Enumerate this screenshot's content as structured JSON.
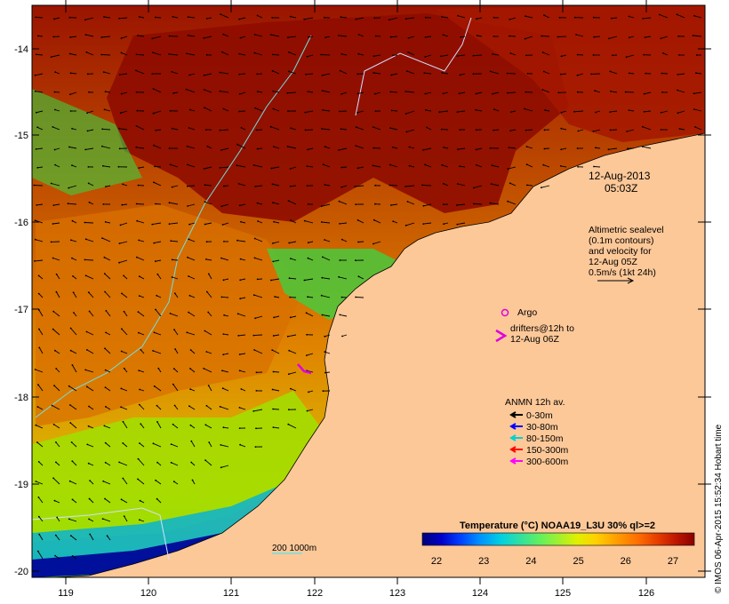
{
  "header": {
    "date": "12-Aug-2013",
    "time": "05:03Z"
  },
  "axes": {
    "latitude_ticks": [
      "-14",
      "-15",
      "-16",
      "-17",
      "-18",
      "-19",
      "-20"
    ],
    "longitude_ticks": [
      "119",
      "120",
      "121",
      "122",
      "123",
      "124",
      "125",
      "126"
    ]
  },
  "altimetry_note": {
    "lines": [
      "Altimetric sealevel",
      "(0.1m contours)",
      "and velocity for",
      "12-Aug 05Z",
      "0.5m/s (1kt 24h)"
    ]
  },
  "argo": {
    "label": "Argo",
    "color": "#e000e0"
  },
  "drifters": {
    "lines": [
      "drifters@12h to",
      "12-Aug 06Z"
    ],
    "color": "#e000e0"
  },
  "anmn": {
    "title": "ANMN 12h av.",
    "items": [
      {
        "label": "0-30m",
        "color": "#000000"
      },
      {
        "label": "30-80m",
        "color": "#0000ff"
      },
      {
        "label": "80-150m",
        "color": "#00d0d0"
      },
      {
        "label": "150-300m",
        "color": "#ff0000"
      },
      {
        "label": "300-600m",
        "color": "#ff00ff"
      }
    ]
  },
  "scale": {
    "label": "200  1000m"
  },
  "colorbar": {
    "title": "Temperature (°C) NOAA19_L3U 30% ql>=2",
    "ticks": [
      "22",
      "23",
      "24",
      "25",
      "26",
      "27"
    ],
    "colors": [
      "#00007a",
      "#0000c8",
      "#0040ff",
      "#0090ff",
      "#00d0e0",
      "#30e0a0",
      "#60f060",
      "#a0f030",
      "#e0f000",
      "#ffd000",
      "#ffa000",
      "#ff7000",
      "#e84000",
      "#c01800",
      "#8a0000"
    ]
  },
  "credit": "© IMOS 06-Apr-2015 15:52:34 Hobart time"
}
